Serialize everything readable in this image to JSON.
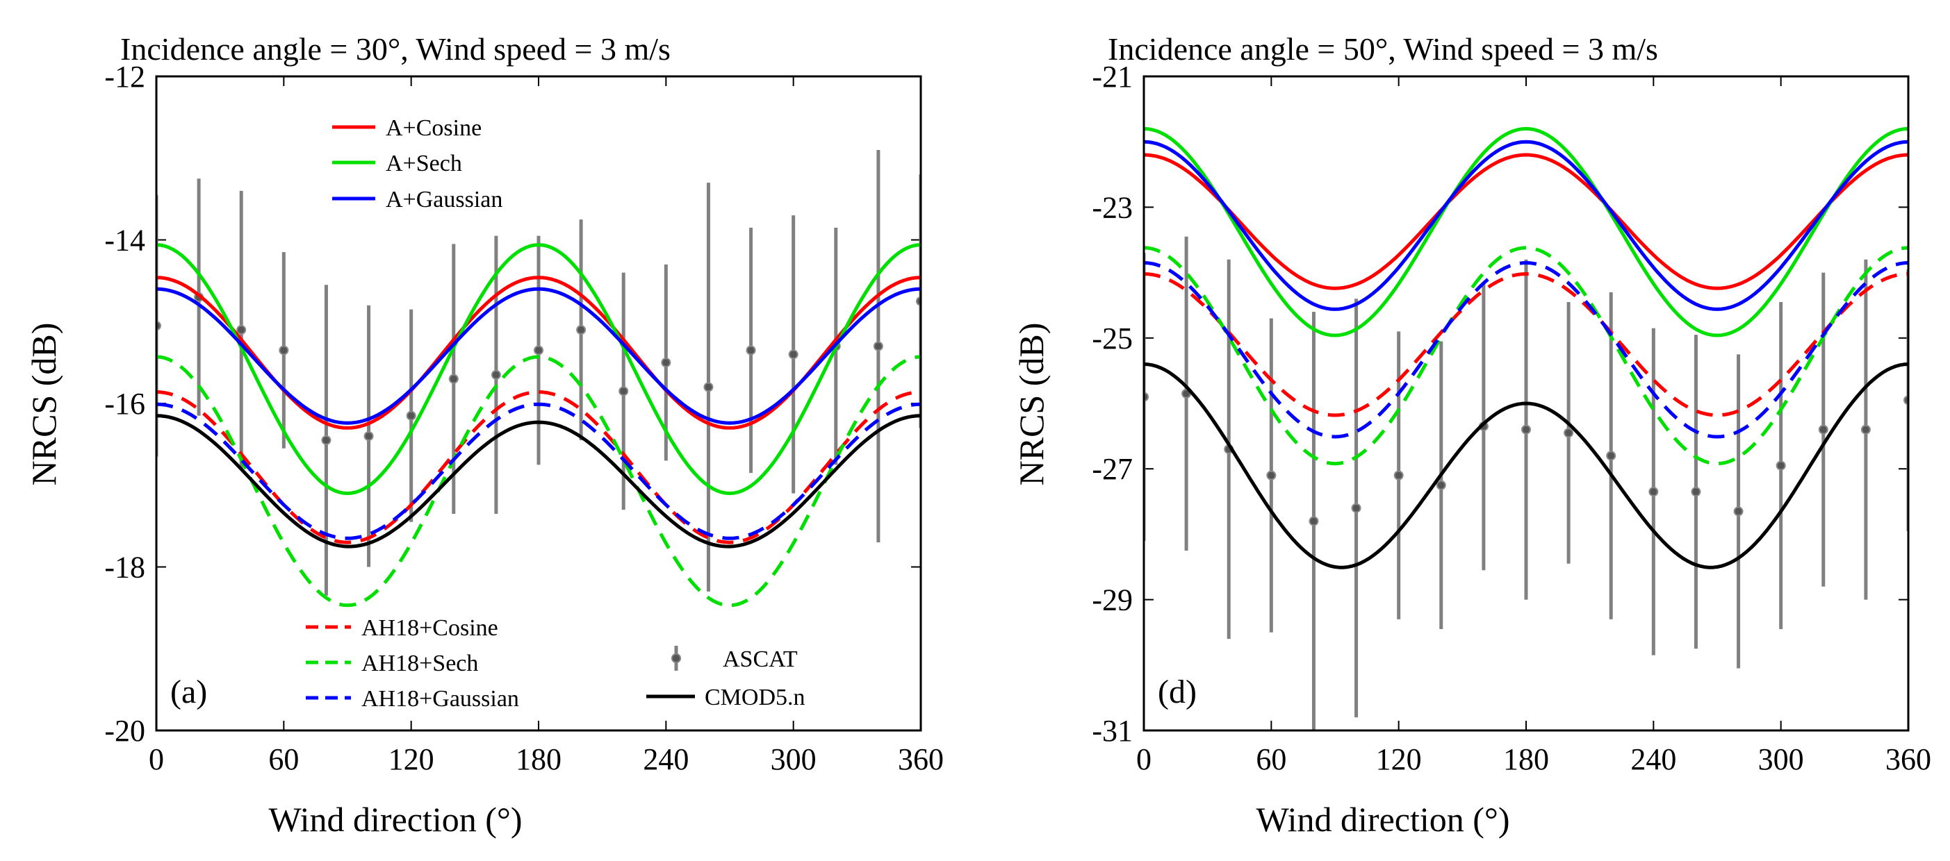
{
  "chart_data": [
    {
      "type": "line",
      "panel_label": "(a)",
      "title": "Incidence angle = 30°, Wind speed = 3 m/s",
      "xlabel": "Wind direction (°)",
      "ylabel": "NRCS (dB)",
      "xlim": [
        0,
        360
      ],
      "ylim": [
        -20,
        -12
      ],
      "xticks": [
        0,
        60,
        120,
        180,
        240,
        300,
        360
      ],
      "yticks": [
        -20,
        -18,
        -16,
        -14,
        -12
      ],
      "grid": false,
      "series": [
        {
          "name": "A+Cosine",
          "color": "#ff0000",
          "dash": "solid",
          "model": "harmonic",
          "a0": -15.38,
          "a2": 0.92
        },
        {
          "name": "A+Sech",
          "color": "#00e000",
          "dash": "solid",
          "model": "harmonic",
          "a0": -15.58,
          "a2": 1.52
        },
        {
          "name": "A+Gaussian",
          "color": "#0000ff",
          "dash": "solid",
          "model": "harmonic",
          "a0": -15.42,
          "a2": 0.82
        },
        {
          "name": "AH18+Cosine",
          "color": "#ff0000",
          "dash": "dashed",
          "model": "harmonic",
          "a0": -16.78,
          "a2": 0.92
        },
        {
          "name": "AH18+Sech",
          "color": "#00e000",
          "dash": "dashed",
          "model": "harmonic",
          "a0": -16.95,
          "a2": 1.52
        },
        {
          "name": "AH18+Gaussian",
          "color": "#0000ff",
          "dash": "dashed",
          "model": "harmonic",
          "a0": -16.83,
          "a2": 0.82
        },
        {
          "name": "CMOD5.n",
          "color": "#000000",
          "dash": "solid",
          "model": "harmonic",
          "a0": -16.97,
          "a2": 0.78,
          "a1": 0.04
        }
      ],
      "ascat": {
        "name": "ASCAT",
        "x": [
          0,
          20,
          40,
          60,
          80,
          100,
          120,
          140,
          160,
          180,
          200,
          220,
          240,
          260,
          280,
          300,
          320,
          340,
          360
        ],
        "y": [
          -15.05,
          -14.7,
          -15.1,
          -15.35,
          -16.45,
          -16.4,
          -16.15,
          -15.7,
          -15.65,
          -15.35,
          -15.1,
          -15.85,
          -15.5,
          -15.8,
          -15.35,
          -15.4,
          -15.3,
          -15.3,
          -14.75
        ],
        "err": [
          1.6,
          1.45,
          1.7,
          1.2,
          1.9,
          1.6,
          1.3,
          1.65,
          1.7,
          1.4,
          1.35,
          1.45,
          1.2,
          2.5,
          1.5,
          1.7,
          1.45,
          2.4,
          1.55
        ]
      },
      "legend_upper": [
        "A+Cosine",
        "A+Sech",
        "A+Gaussian"
      ],
      "legend_lower_left": [
        "AH18+Cosine",
        "AH18+Sech",
        "AH18+Gaussian"
      ],
      "legend_lower_right": [
        "ASCAT",
        "CMOD5.n"
      ]
    },
    {
      "type": "line",
      "panel_label": "(d)",
      "title": "Incidence angle = 50°, Wind speed = 3 m/s",
      "xlabel": "Wind direction (°)",
      "ylabel": "NRCS (dB)",
      "xlim": [
        0,
        360
      ],
      "ylim": [
        -31,
        -21
      ],
      "xticks": [
        0,
        60,
        120,
        180,
        240,
        300,
        360
      ],
      "yticks": [
        -31,
        -29,
        -27,
        -25,
        -23,
        -21
      ],
      "grid": false,
      "series": [
        {
          "name": "A+Cosine",
          "color": "#ff0000",
          "dash": "solid",
          "model": "harmonic",
          "a0": -23.22,
          "a2": 1.02
        },
        {
          "name": "A+Sech",
          "color": "#00e000",
          "dash": "solid",
          "model": "harmonic",
          "a0": -23.38,
          "a2": 1.58
        },
        {
          "name": "A+Gaussian",
          "color": "#0000ff",
          "dash": "solid",
          "model": "harmonic",
          "a0": -23.28,
          "a2": 1.28
        },
        {
          "name": "AH18+Cosine",
          "color": "#ff0000",
          "dash": "dashed",
          "model": "harmonic",
          "a0": -25.1,
          "a2": 1.08
        },
        {
          "name": "AH18+Sech",
          "color": "#00e000",
          "dash": "dashed",
          "model": "harmonic",
          "a0": -25.27,
          "a2": 1.65
        },
        {
          "name": "AH18+Gaussian",
          "color": "#0000ff",
          "dash": "dashed",
          "model": "harmonic",
          "a0": -25.18,
          "a2": 1.33
        },
        {
          "name": "CMOD5.n",
          "color": "#000000",
          "dash": "solid",
          "model": "harmonic",
          "a0": -27.1,
          "a2": 1.4,
          "a1": 0.3
        }
      ],
      "ascat": {
        "name": "ASCAT",
        "x": [
          0,
          20,
          40,
          60,
          80,
          100,
          120,
          140,
          160,
          180,
          200,
          220,
          240,
          260,
          280,
          300,
          320,
          340,
          360
        ],
        "y": [
          -25.9,
          -25.85,
          -26.7,
          -27.1,
          -27.8,
          -27.6,
          -27.1,
          -27.25,
          -26.35,
          -26.4,
          -26.45,
          -26.8,
          -27.35,
          -27.35,
          -27.65,
          -26.95,
          -26.4,
          -26.4,
          -25.95
        ],
        "err": [
          2.2,
          2.4,
          2.9,
          2.4,
          3.2,
          3.2,
          2.2,
          2.2,
          2.2,
          2.6,
          2.0,
          2.5,
          2.5,
          2.4,
          2.4,
          2.5,
          2.4,
          2.6,
          2.0
        ]
      }
    }
  ]
}
